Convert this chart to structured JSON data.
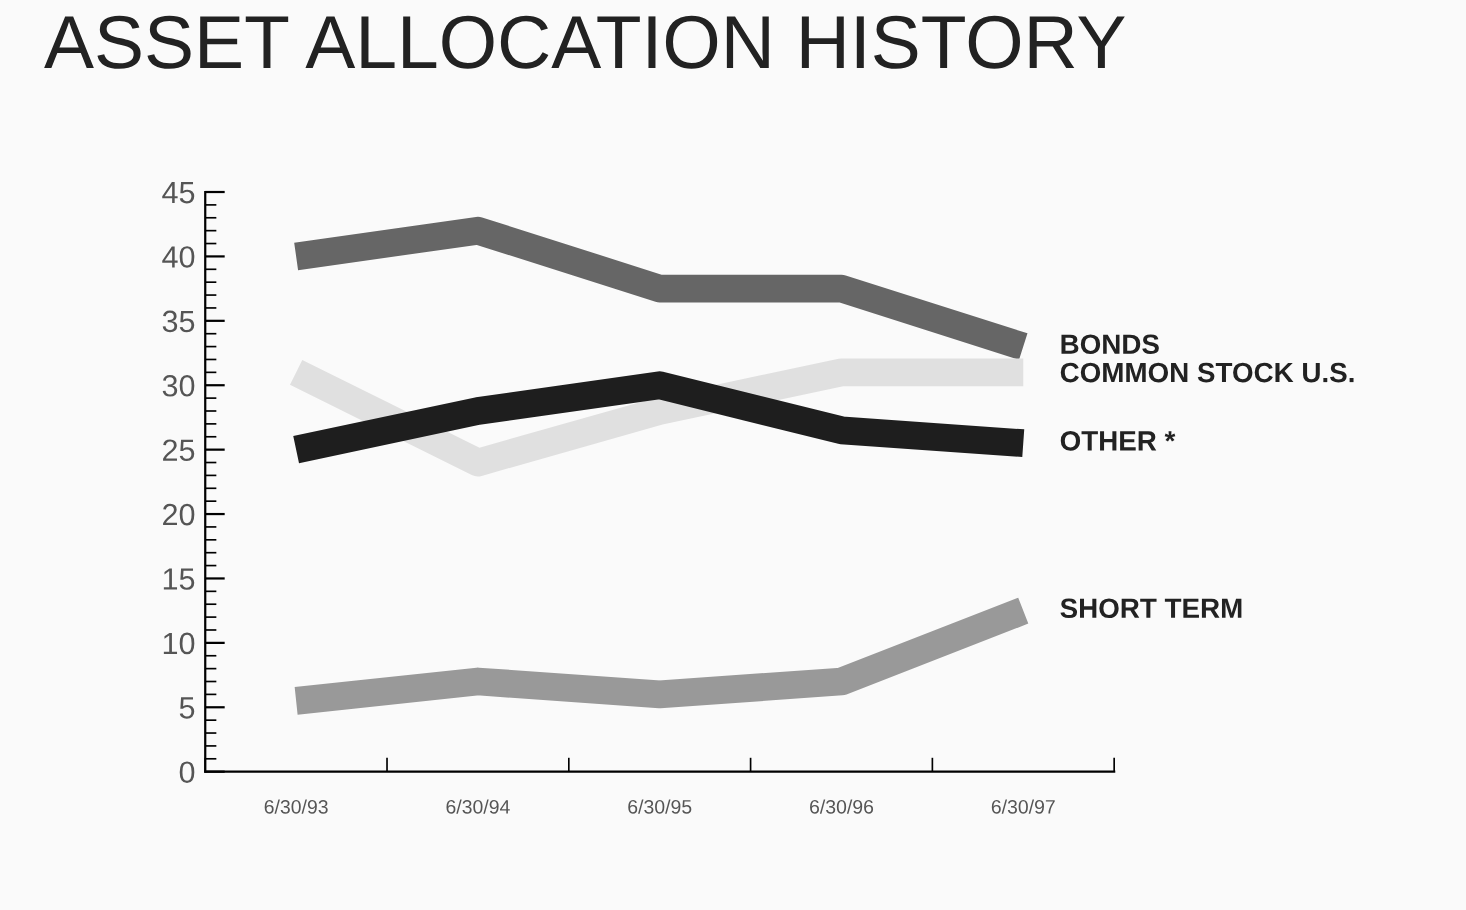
{
  "chart_data": {
    "type": "line",
    "title": "ASSET ALLOCATION HISTORY",
    "categories": [
      "6/30/93",
      "6/30/94",
      "6/30/95",
      "6/30/96",
      "6/30/97"
    ],
    "series": [
      {
        "name": "BONDS",
        "color": "#666666",
        "values": [
          40,
          42,
          37.5,
          37.5,
          33
        ]
      },
      {
        "name": "COMMON STOCK U.S.",
        "color": "#e0e0e0",
        "values": [
          31,
          24,
          28,
          31,
          31
        ]
      },
      {
        "name": "OTHER *",
        "color": "#1e1e1e",
        "values": [
          25,
          28,
          30,
          26.5,
          25.5
        ]
      },
      {
        "name": "SHORT TERM",
        "color": "#999999",
        "values": [
          5.5,
          7,
          6,
          7,
          12.5
        ]
      }
    ],
    "ylim": [
      0,
      45
    ],
    "yticks": [
      0,
      5,
      10,
      15,
      20,
      25,
      30,
      35,
      40,
      45
    ],
    "grid": false,
    "legend": false,
    "marker": "none",
    "line_style": "solid"
  }
}
